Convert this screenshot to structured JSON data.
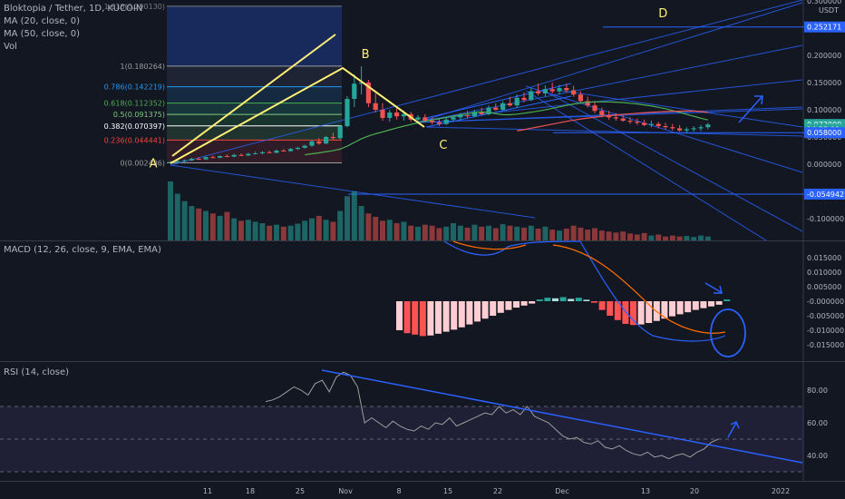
{
  "header": {
    "symbol": "Bloktopia / Tether, 1D, KUCOIN",
    "ma20": "MA (20, close, 0)",
    "ma50": "MA (50, close, 0)",
    "vol": "Vol"
  },
  "colors": {
    "background": "#131722",
    "up": "#26a69a",
    "down": "#ef5350",
    "ma20": "#4caf50",
    "ma50": "#ef5350",
    "annotation": "#fff176",
    "trend": "#2962ff",
    "hist_light": "#ffcdd2",
    "hist_dark": "#ff5252",
    "rsi": "#9e9e9e"
  },
  "price_axis": {
    "unit": "USDT",
    "ticks": [
      "0.300000",
      "0.250000",
      "0.200000",
      "0.150000",
      "0.100000",
      "0.050000",
      "0.000000",
      "-0.050000",
      "-0.100000"
    ],
    "badges": [
      {
        "value": "0.252171",
        "price": 0.252171,
        "color": "#2962ff"
      },
      {
        "value": "0.073000",
        "price": 0.073,
        "color": "#26a69a"
      },
      {
        "value": "14:33:09",
        "price": 0.064,
        "color": "#26a69a"
      },
      {
        "value": "0.058000",
        "price": 0.058,
        "color": "#2962ff"
      },
      {
        "value": "-0.054942",
        "price": -0.054942,
        "color": "#2962ff"
      }
    ]
  },
  "fib": {
    "levels": [
      {
        "label": "1.618(0.290130)",
        "price": 0.29013
      },
      {
        "label": "1(0.180264)",
        "price": 0.180264
      },
      {
        "label": "0.786(0.142219)",
        "price": 0.142219
      },
      {
        "label": "0.618(0.112352)",
        "price": 0.112352
      },
      {
        "label": "0.5(0.091375)",
        "price": 0.091375
      },
      {
        "label": "0.382(0.070397)",
        "price": 0.070397
      },
      {
        "label": "0.236(0.044441)",
        "price": 0.044441
      },
      {
        "label": "0(0.002486)",
        "price": 0.002486
      }
    ]
  },
  "points": [
    {
      "label": "A",
      "day": -3,
      "price": -0.006
    },
    {
      "label": "B",
      "day": 27,
      "price": 0.195
    },
    {
      "label": "C",
      "day": 38,
      "price": 0.028
    },
    {
      "label": "D",
      "day": 69,
      "price": 0.27
    }
  ],
  "macd": {
    "title": "MACD (12, 26, close, 9, EMA, EMA)",
    "ticks": [
      "0.015000",
      "0.010000",
      "0.005000",
      "-0.000000",
      "-0.005000",
      "-0.010000",
      "-0.015000"
    ]
  },
  "rsi": {
    "title": "RSI (14, close)",
    "ticks": [
      "80.00",
      "60.00",
      "40.00"
    ]
  },
  "time_axis": {
    "ticks": [
      "11",
      "18",
      "25",
      "Nov",
      "8",
      "15",
      "22",
      "Dec",
      "13",
      "20",
      "2022"
    ]
  },
  "chart_data": {
    "type": "candlestick",
    "start_date": "2021-10-01",
    "candles": [
      [
        0.0025,
        0.006,
        0.001,
        0.004
      ],
      [
        0.004,
        0.008,
        0.003,
        0.006
      ],
      [
        0.006,
        0.009,
        0.004,
        0.007
      ],
      [
        0.007,
        0.012,
        0.006,
        0.01
      ],
      [
        0.01,
        0.013,
        0.008,
        0.009
      ],
      [
        0.009,
        0.014,
        0.008,
        0.013
      ],
      [
        0.013,
        0.016,
        0.011,
        0.012
      ],
      [
        0.012,
        0.016,
        0.011,
        0.015
      ],
      [
        0.015,
        0.018,
        0.013,
        0.014
      ],
      [
        0.014,
        0.019,
        0.013,
        0.017
      ],
      [
        0.017,
        0.02,
        0.015,
        0.016
      ],
      [
        0.016,
        0.021,
        0.015,
        0.019
      ],
      [
        0.019,
        0.023,
        0.018,
        0.02
      ],
      [
        0.02,
        0.024,
        0.018,
        0.022
      ],
      [
        0.022,
        0.025,
        0.02,
        0.021
      ],
      [
        0.021,
        0.027,
        0.02,
        0.025
      ],
      [
        0.025,
        0.028,
        0.023,
        0.024
      ],
      [
        0.024,
        0.03,
        0.023,
        0.028
      ],
      [
        0.028,
        0.032,
        0.026,
        0.03
      ],
      [
        0.03,
        0.036,
        0.029,
        0.034
      ],
      [
        0.034,
        0.045,
        0.032,
        0.042
      ],
      [
        0.042,
        0.048,
        0.036,
        0.038
      ],
      [
        0.038,
        0.052,
        0.037,
        0.05
      ],
      [
        0.05,
        0.058,
        0.045,
        0.048
      ],
      [
        0.048,
        0.072,
        0.046,
        0.07
      ],
      [
        0.07,
        0.125,
        0.068,
        0.12
      ],
      [
        0.12,
        0.165,
        0.105,
        0.148
      ],
      [
        0.148,
        0.18,
        0.128,
        0.15
      ],
      [
        0.15,
        0.155,
        0.105,
        0.112
      ],
      [
        0.112,
        0.13,
        0.095,
        0.1
      ],
      [
        0.1,
        0.112,
        0.08,
        0.085
      ],
      [
        0.085,
        0.1,
        0.078,
        0.095
      ],
      [
        0.095,
        0.104,
        0.082,
        0.088
      ],
      [
        0.088,
        0.098,
        0.08,
        0.092
      ],
      [
        0.092,
        0.096,
        0.078,
        0.082
      ],
      [
        0.082,
        0.09,
        0.074,
        0.086
      ],
      [
        0.086,
        0.092,
        0.078,
        0.08
      ],
      [
        0.08,
        0.086,
        0.073,
        0.077
      ],
      [
        0.077,
        0.083,
        0.07,
        0.074
      ],
      [
        0.074,
        0.085,
        0.072,
        0.082
      ],
      [
        0.082,
        0.09,
        0.078,
        0.086
      ],
      [
        0.086,
        0.094,
        0.081,
        0.09
      ],
      [
        0.09,
        0.098,
        0.085,
        0.088
      ],
      [
        0.088,
        0.1,
        0.086,
        0.096
      ],
      [
        0.096,
        0.104,
        0.09,
        0.092
      ],
      [
        0.092,
        0.108,
        0.09,
        0.104
      ],
      [
        0.104,
        0.112,
        0.098,
        0.1
      ],
      [
        0.1,
        0.116,
        0.098,
        0.112
      ],
      [
        0.112,
        0.124,
        0.106,
        0.108
      ],
      [
        0.108,
        0.128,
        0.104,
        0.122
      ],
      [
        0.122,
        0.132,
        0.114,
        0.118
      ],
      [
        0.118,
        0.14,
        0.116,
        0.134
      ],
      [
        0.134,
        0.148,
        0.126,
        0.13
      ],
      [
        0.13,
        0.145,
        0.124,
        0.138
      ],
      [
        0.138,
        0.15,
        0.13,
        0.134
      ],
      [
        0.134,
        0.146,
        0.128,
        0.14
      ],
      [
        0.14,
        0.148,
        0.132,
        0.136
      ],
      [
        0.136,
        0.144,
        0.124,
        0.128
      ],
      [
        0.128,
        0.134,
        0.112,
        0.116
      ],
      [
        0.116,
        0.124,
        0.104,
        0.108
      ],
      [
        0.108,
        0.116,
        0.094,
        0.098
      ],
      [
        0.098,
        0.104,
        0.086,
        0.09
      ],
      [
        0.09,
        0.098,
        0.082,
        0.086
      ],
      [
        0.086,
        0.094,
        0.08,
        0.084
      ],
      [
        0.084,
        0.09,
        0.078,
        0.08
      ],
      [
        0.08,
        0.086,
        0.074,
        0.078
      ],
      [
        0.078,
        0.084,
        0.072,
        0.076
      ],
      [
        0.076,
        0.082,
        0.07,
        0.072
      ],
      [
        0.072,
        0.08,
        0.068,
        0.074
      ],
      [
        0.074,
        0.078,
        0.066,
        0.07
      ],
      [
        0.07,
        0.076,
        0.064,
        0.068
      ],
      [
        0.068,
        0.074,
        0.062,
        0.066
      ],
      [
        0.066,
        0.072,
        0.06,
        0.062
      ],
      [
        0.062,
        0.068,
        0.058,
        0.064
      ],
      [
        0.064,
        0.07,
        0.06,
        0.066
      ],
      [
        0.066,
        0.072,
        0.061,
        0.068
      ],
      [
        0.068,
        0.076,
        0.064,
        0.073
      ]
    ],
    "volume": [
      120,
      95,
      80,
      70,
      65,
      60,
      55,
      50,
      58,
      45,
      40,
      42,
      38,
      35,
      30,
      32,
      28,
      30,
      34,
      40,
      45,
      50,
      42,
      38,
      60,
      90,
      100,
      70,
      55,
      48,
      40,
      42,
      35,
      38,
      30,
      28,
      32,
      30,
      25,
      28,
      35,
      30,
      26,
      32,
      28,
      30,
      25,
      33,
      30,
      28,
      26,
      30,
      24,
      28,
      22,
      20,
      24,
      30,
      26,
      22,
      25,
      20,
      18,
      16,
      18,
      14,
      12,
      15,
      10,
      12,
      8,
      10,
      8,
      9,
      7,
      10,
      8
    ],
    "ma20_note": "computed from candles",
    "macd_hist_note": "derived"
  }
}
